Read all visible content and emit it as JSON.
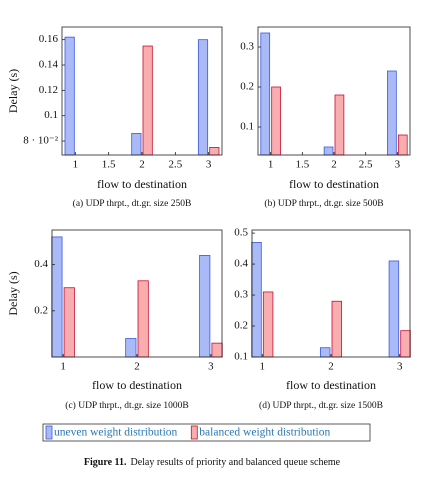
{
  "chart_data": [
    {
      "type": "bar",
      "xlabel": "flow to destination",
      "ylabel": "Delay (s)",
      "caption": "(a) UDP thrpt., dt.gr. size 250B",
      "x": [
        1,
        2,
        3
      ],
      "xlim": [
        0.8,
        3.2
      ],
      "xticks": [
        1,
        1.5,
        2,
        2.5,
        3
      ],
      "ylim": [
        0.069,
        0.17
      ],
      "yticks": [
        {
          "value": 0.08,
          "label": "8 · 10⁻²"
        },
        0.1,
        0.12,
        0.14,
        0.16
      ],
      "series": [
        {
          "name": "uneven weight distribution",
          "color": "#aab9f7",
          "edgecolor": "#3b5bdb",
          "values": [
            0.162,
            0.086,
            0.16
          ]
        },
        {
          "name": "balanced weight distribution",
          "color": "#f8adb0",
          "edgecolor": "#c8102e",
          "values": [
            null,
            0.155,
            0.075
          ]
        }
      ]
    },
    {
      "type": "bar",
      "xlabel": "flow to destination",
      "caption": "(b) UDP thrpt., dt.gr. size 500B",
      "x": [
        1,
        2,
        3
      ],
      "xlim": [
        0.8,
        3.2
      ],
      "xticks": [
        1,
        1.5,
        2,
        2.5,
        3
      ],
      "ylim": [
        0.03,
        0.35
      ],
      "yticks": [
        0.1,
        0.2,
        0.3
      ],
      "series": [
        {
          "color": "#aab9f7",
          "edgecolor": "#3b5bdb",
          "values": [
            0.335,
            0.05,
            0.24
          ]
        },
        {
          "color": "#f8adb0",
          "edgecolor": "#c8102e",
          "values": [
            0.2,
            0.18,
            0.08
          ]
        }
      ]
    },
    {
      "type": "bar",
      "xlabel": "flow to destination",
      "ylabel": "Delay (s)",
      "caption": "(c) UDP thrpt., dt.gr. size 1000B",
      "x": [
        1,
        2,
        3
      ],
      "xlim": [
        0.85,
        3.15
      ],
      "xticks": [
        1,
        2,
        3
      ],
      "ylim": [
        0,
        0.55
      ],
      "yticks": [
        0.2,
        0.4
      ],
      "series": [
        {
          "color": "#aab9f7",
          "edgecolor": "#3b5bdb",
          "values": [
            0.52,
            0.08,
            0.44
          ]
        },
        {
          "color": "#f8adb0",
          "edgecolor": "#c8102e",
          "values": [
            0.3,
            0.33,
            0.06
          ]
        }
      ]
    },
    {
      "type": "bar",
      "xlabel": "flow to destination",
      "caption": "(d) UDP thrpt., dt.gr. size 1500B",
      "x": [
        1,
        2,
        3
      ],
      "xlim": [
        0.85,
        3.15
      ],
      "xticks": [
        1,
        2,
        3
      ],
      "ylim": [
        0.1,
        0.51
      ],
      "yticks": [
        0.1,
        0.2,
        0.3,
        0.4,
        0.5
      ],
      "series": [
        {
          "color": "#aab9f7",
          "edgecolor": "#3b5bdb",
          "values": [
            0.47,
            0.13,
            0.41
          ]
        },
        {
          "color": "#f8adb0",
          "edgecolor": "#c8102e",
          "values": [
            0.31,
            0.28,
            0.185
          ]
        }
      ]
    }
  ],
  "figure_caption": {
    "label": "Figure 11.",
    "text": "Delay results of priority and balanced queue scheme"
  }
}
